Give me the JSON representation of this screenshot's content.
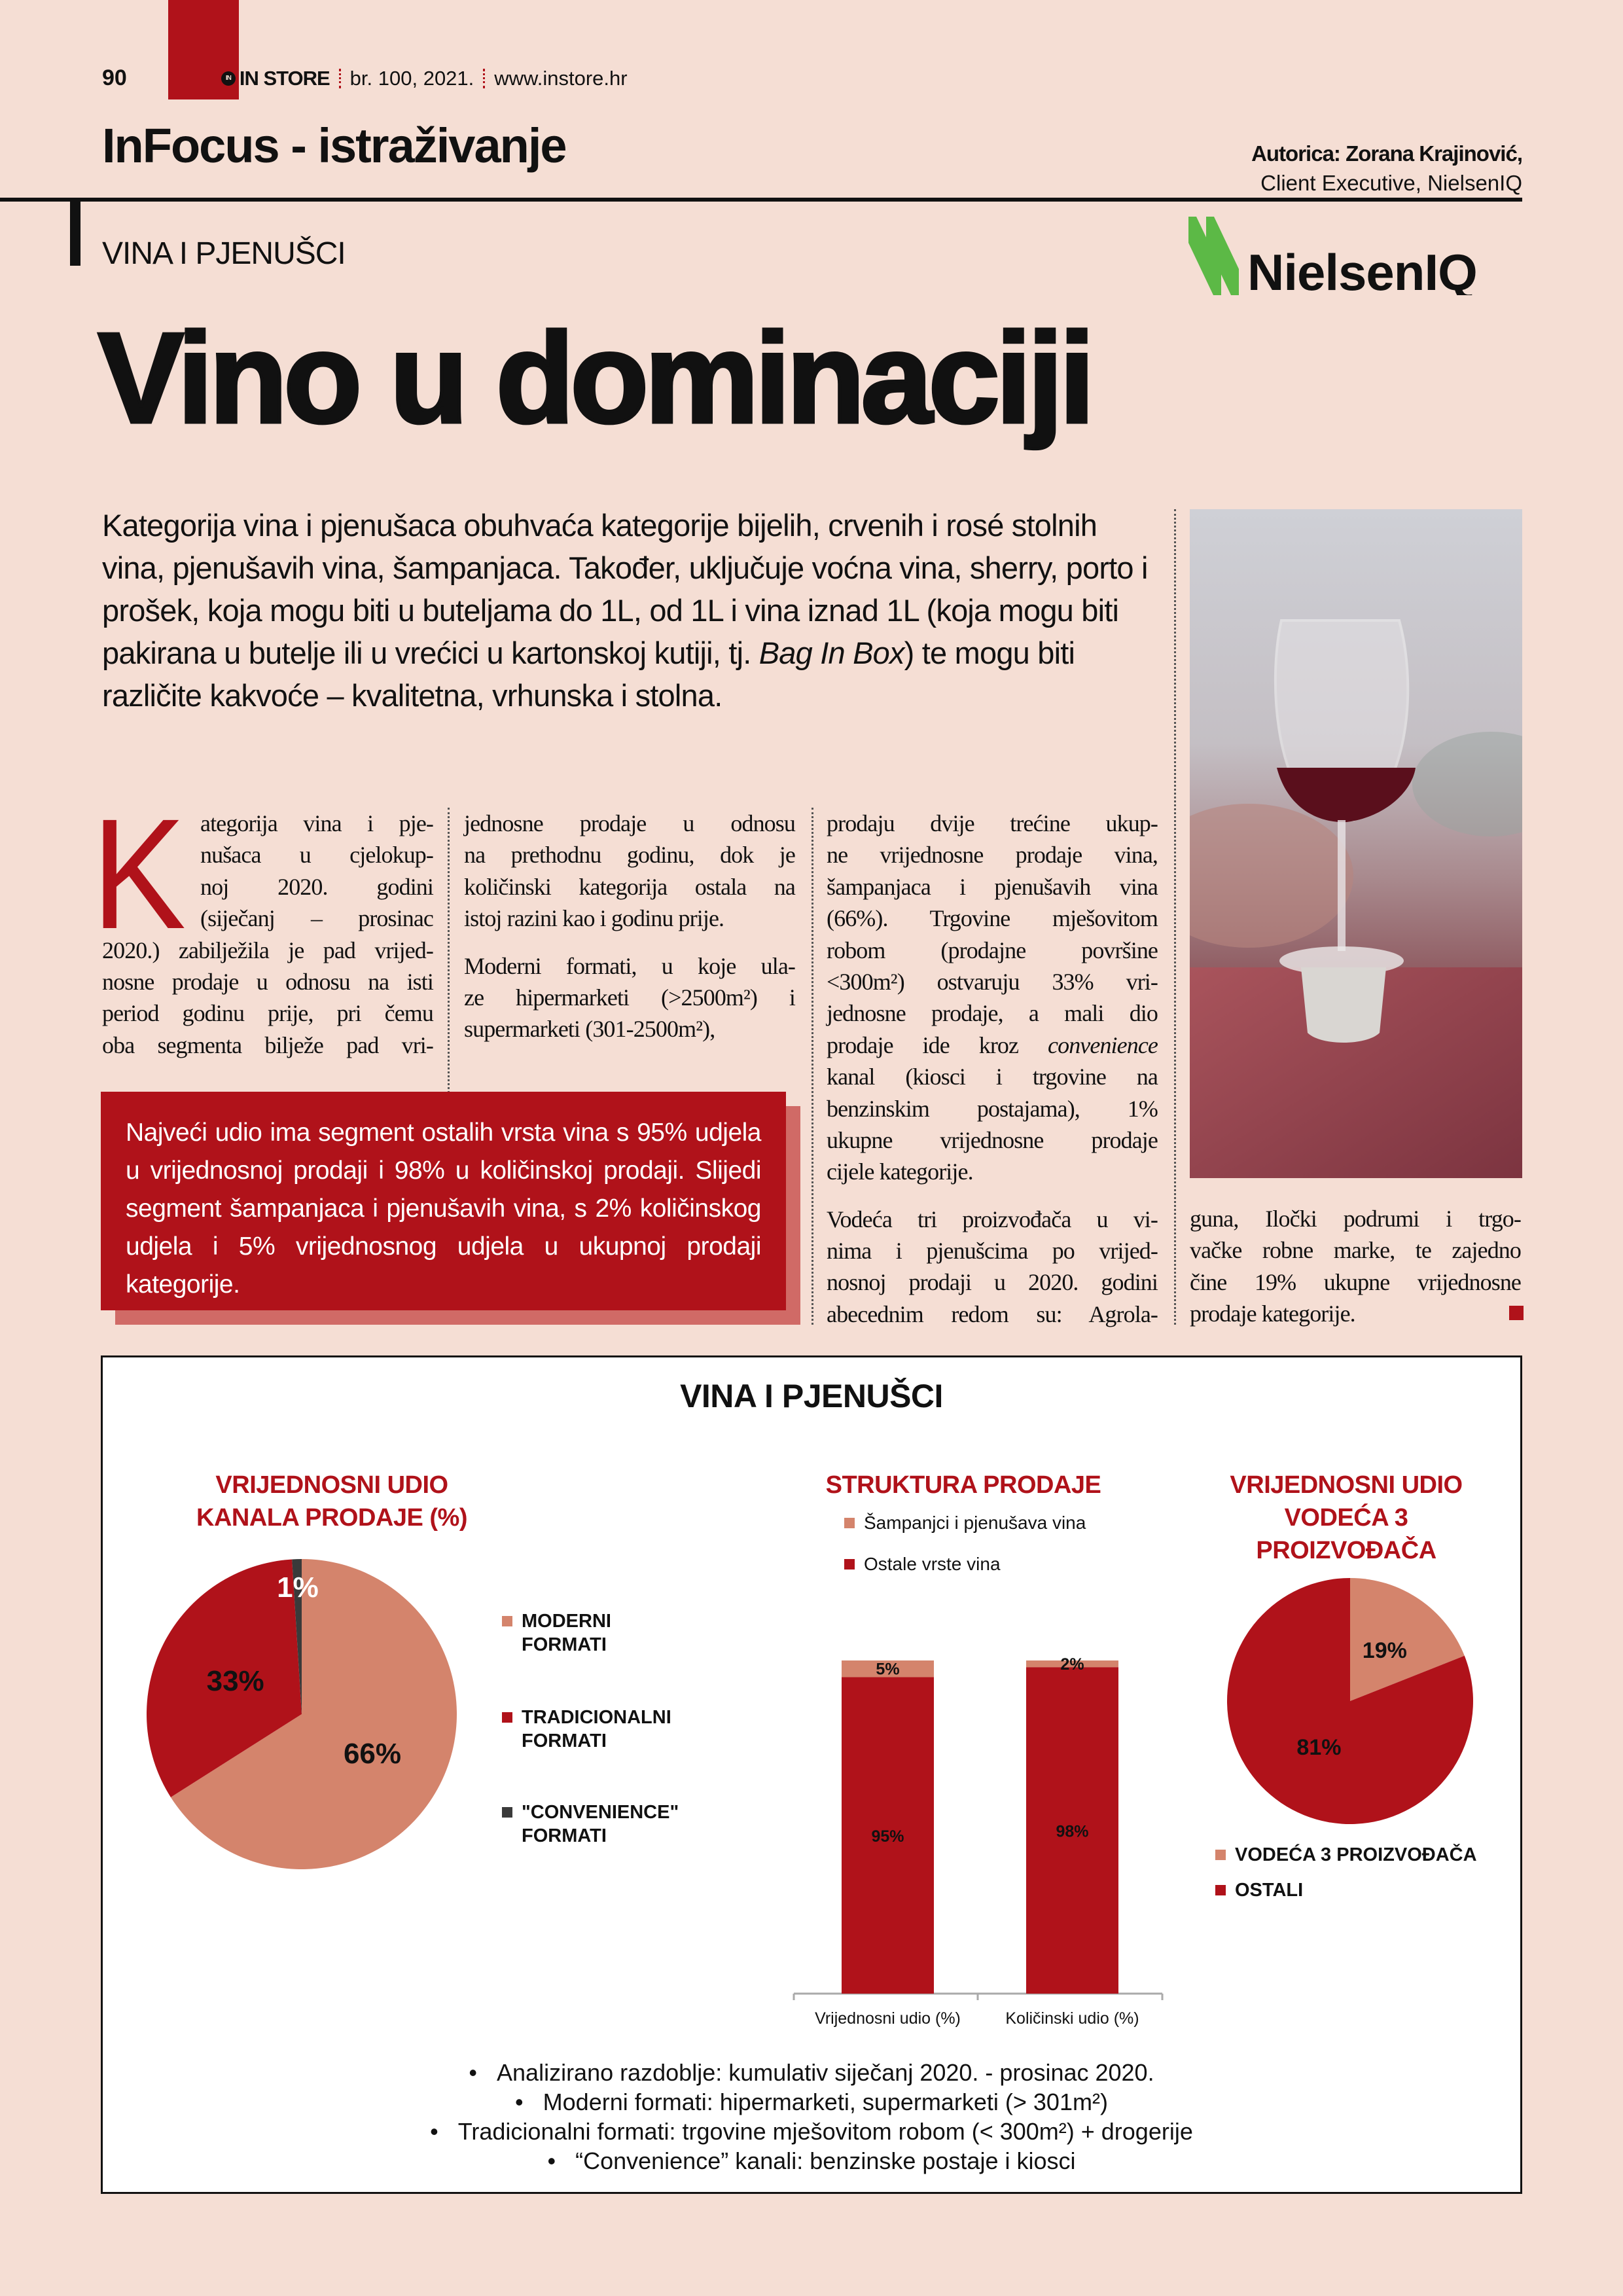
{
  "colors": {
    "accent": "#b0121a",
    "light": "#d4846c",
    "dark": "#3a3a3a",
    "background": "#f5ded4",
    "nielsen_green": "#5cb946"
  },
  "header": {
    "page_number": "90",
    "magazine_logo": "IN STORE",
    "issue": "br. 100, 2021.",
    "website": "www.instore.hr"
  },
  "section": "InFocus - istraživanje",
  "author": {
    "name": "Autorica: Zorana Krajinović,",
    "role": "Client Executive, NielsenIQ"
  },
  "kicker": "VINA I PJENUŠCI",
  "sponsor_logo": "NielsenIQ",
  "title": "Vino u dominaciji",
  "intro": {
    "before": "Kategorija vina i pjenušaca obuhvaća kategorije bijelih, crvenih i rosé stolnih vina, pjenušavih vina, šampanjaca. Također, uključuje voćna vina, sherry, porto i prošek, koja mogu biti u buteljama do 1L, od 1L i vina iznad 1L (koja mogu biti pakirana u butelje ili u vrećici u kartonskoj kutiji, tj. ",
    "italic": "Bag In Box",
    "after": ") te mogu biti različite kakvoće – kvalitetna, vrhunska i stolna."
  },
  "body": {
    "drop_cap": "K",
    "col1": [
      "ategorija vina i pje-",
      "nušaca u cjelokup-",
      "noj 2020. godini",
      "(siječanj – prosinac",
      "2020.) zabilježila je pad vrijed-",
      "nosne prodaje u odnosu na isti",
      "period godinu prije, pri čemu",
      "oba segmenta bilježe pad vri-"
    ],
    "col2": [
      "jednosne prodaje u odnosu",
      "na prethodnu godinu, dok je",
      "količinski kategorija ostala na",
      "istoj razini kao i godinu prije.",
      "Moderni formati, u koje ula-",
      "ze hipermarketi (>2500m²) i",
      "supermarketi (301-2500m²),"
    ],
    "col3": [
      "prodaju dvije trećine ukup-",
      "ne vrijednosne prodaje vina,",
      "šampanjaca i pjenušavih vina",
      "(66%). Trgovine mješovitom",
      "robom (prodajne površine",
      "<300m²) ostvaruju 33% vri-",
      "jednosne prodaje, a mali dio",
      {
        "text": "prodaje ide kroz ",
        "em": "convenience"
      },
      "kanal (kiosci i trgovine na",
      "benzinskim postajama), 1%",
      "ukupne vrijednosne prodaje",
      "cijele kategorije.",
      "Vodeća tri proizvođača u vi-",
      "nima i pjenušcima po vrijed-",
      "nosnoj prodaji u 2020. godini",
      "abecednim redom su: Agrola-"
    ],
    "col4": [
      "guna, Iločki podrumi i trgo-",
      "vačke robne marke, te zajedno",
      "čine 19% ukupne vrijednosne",
      "prodaje kategorije."
    ]
  },
  "callout": "Najveći udio ima segment ostalih vrsta vina s 95% udjela u vrijednosnoj prodaji i 98% u količinskoj prodaji. Slijedi segment šampanjaca i pjenušavih vina, s 2% količinskog udjela i 5% vrijednosnog udjela u ukupnoj prodaji kategorije.",
  "infographic": {
    "title": "VINA I PJENUŠCI",
    "notes": [
      "Analizirano razdoblje: kumulativ siječanj 2020. - prosinac 2020.",
      "Moderni formati: hipermarketi, supermarketi (> 301m²)",
      "Tradicionalni formati: trgovine mješovitom robom (< 300m²) + drogerije",
      "“Convenience” kanali: benzinske postaje i kiosci"
    ]
  },
  "chart_data": [
    {
      "type": "pie",
      "title": "VRIJEDNOSNI UDIO KANALA PRODAJE (%)",
      "title_lines": [
        "VRIJEDNOSNI UDIO",
        "KANALA PRODAJE (%)"
      ],
      "slices": [
        {
          "name": "MODERNI FORMATI",
          "legend_lines": [
            "MODERNI",
            "FORMATI"
          ],
          "value": 66,
          "label": "66%",
          "color": "#d4846c"
        },
        {
          "name": "TRADICIONALNI FORMATI",
          "legend_lines": [
            "TRADICIONALNI",
            "FORMATI"
          ],
          "value": 33,
          "label": "33%",
          "color": "#b0121a"
        },
        {
          "name": "\"CONVENIENCE\" FORMATI",
          "legend_lines": [
            "\"CONVENIENCE\"",
            "FORMATI"
          ],
          "value": 1,
          "label": "1%",
          "color": "#3a3a3a"
        }
      ],
      "legend": "right"
    },
    {
      "type": "bar",
      "stacked": true,
      "title": "STRUKTURA PRODAJE",
      "categories": [
        "Vrijednosni udio (%)",
        "Količinski udio (%)"
      ],
      "series": [
        {
          "name": "Ostale vrste vina",
          "values": [
            95,
            98
          ],
          "labels": [
            "95%",
            "98%"
          ],
          "color": "#b0121a"
        },
        {
          "name": "Šampanjci i pjenušava vina",
          "values": [
            5,
            2
          ],
          "labels": [
            "5%",
            "2%"
          ],
          "color": "#d4846c"
        }
      ],
      "ylim": [
        0,
        100
      ],
      "legend": "top",
      "grid": false
    },
    {
      "type": "pie",
      "title": "VRIJEDNOSNI UDIO VODEĆA 3 PROIZVOĐAČA",
      "title_lines": [
        "VRIJEDNOSNI UDIO",
        "VODEĆA 3",
        "PROIZVOĐAČA"
      ],
      "slices": [
        {
          "name": "VODEĆA 3 PROIZVOĐAČA",
          "value": 19,
          "label": "19%",
          "color": "#d4846c"
        },
        {
          "name": "OSTALI",
          "value": 81,
          "label": "81%",
          "color": "#b0121a"
        }
      ],
      "legend": "bottom"
    }
  ]
}
